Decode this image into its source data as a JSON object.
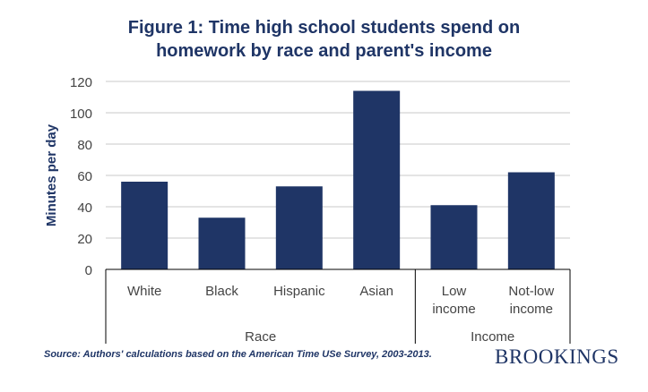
{
  "chart_data": {
    "type": "bar",
    "title_lines": [
      "Figure 1: Time high school students spend on",
      "homework by race and parent's income"
    ],
    "ylabel": "Minutes per day",
    "ylim": [
      0,
      120
    ],
    "yticks": [
      "0",
      "20",
      "40",
      "60",
      "80",
      "100",
      "120"
    ],
    "grid": true,
    "categories": [
      "White",
      "Black",
      "Hispanic",
      "Asian",
      "Low income",
      "Not-low income"
    ],
    "category_lines": [
      [
        "White"
      ],
      [
        "Black"
      ],
      [
        "Hispanic"
      ],
      [
        "Asian"
      ],
      [
        "Low",
        "income"
      ],
      [
        "Not-low",
        "income"
      ]
    ],
    "values": [
      56,
      33,
      53,
      114,
      41,
      62
    ],
    "groups": [
      {
        "label": "Race",
        "categories": [
          "White",
          "Black",
          "Hispanic",
          "Asian"
        ]
      },
      {
        "label": "Income",
        "categories": [
          "Low income",
          "Not-low income"
        ]
      }
    ],
    "bar_color": "#1f3566"
  },
  "source": "Source: Authors' calculations based on the American  Time  USe Survey, 2003-2013.",
  "brand": "BROOKINGS"
}
